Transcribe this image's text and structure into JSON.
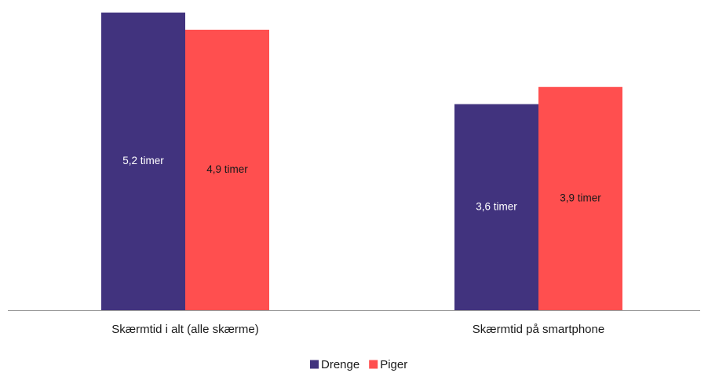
{
  "chart_data": {
    "type": "bar",
    "categories": [
      "Skærmtid i alt (alle skærme)",
      "Skærmtid på smartphone"
    ],
    "series": [
      {
        "name": "Drenge",
        "color": "#41337e",
        "label_color": "#ffffff",
        "values": [
          5.2,
          3.6
        ],
        "labels": [
          "5,2 timer",
          "3,6 timer"
        ]
      },
      {
        "name": "Piger",
        "color": "#ff4f4f",
        "label_color": "#1a1a1a",
        "values": [
          4.9,
          3.9
        ],
        "labels": [
          "4,9 timer",
          "3,9 timer"
        ]
      }
    ],
    "ylim": [
      0,
      5.2
    ],
    "grid": false,
    "legend_position": "bottom-center",
    "axis_color": "#999999"
  }
}
